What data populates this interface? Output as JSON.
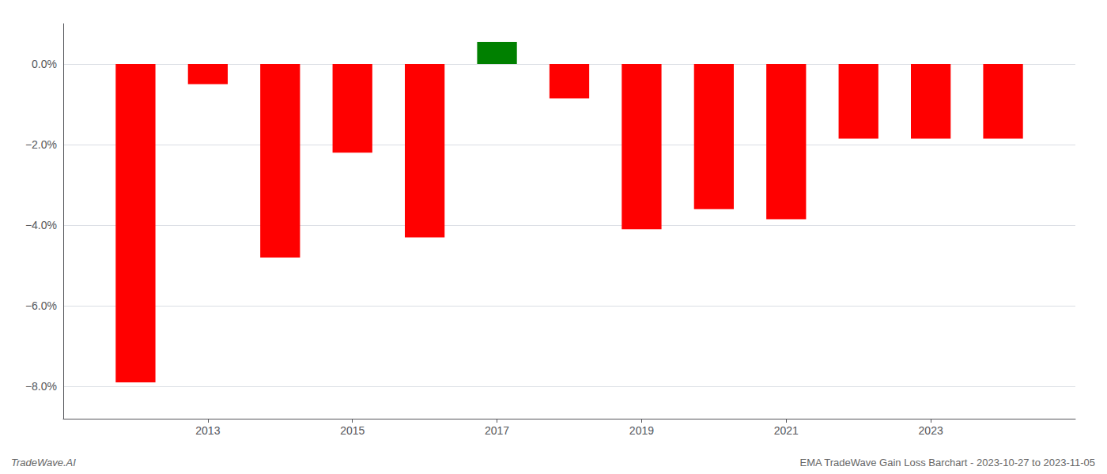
{
  "chart_data": {
    "type": "bar",
    "x": [
      2012,
      2013,
      2014,
      2015,
      2016,
      2017,
      2018,
      2019,
      2020,
      2021,
      2022,
      2023,
      2024
    ],
    "values": [
      -7.9,
      -0.5,
      -4.8,
      -2.2,
      -4.3,
      0.55,
      -0.85,
      -4.1,
      -3.6,
      -3.85,
      -1.85,
      -1.85,
      -1.85
    ],
    "colors": [
      "#ff0000",
      "#ff0000",
      "#ff0000",
      "#ff0000",
      "#ff0000",
      "#008000",
      "#ff0000",
      "#ff0000",
      "#ff0000",
      "#ff0000",
      "#ff0000",
      "#ff0000",
      "#ff0000"
    ],
    "xlim": [
      2011.0,
      2025.0
    ],
    "xticks": [
      2013,
      2015,
      2017,
      2019,
      2021,
      2023
    ],
    "ylim": [
      -8.8,
      1.0
    ],
    "yticks": [
      {
        "value": 0.0,
        "label": "0.0%"
      },
      {
        "value": -2.0,
        "label": "−2.0%"
      },
      {
        "value": -4.0,
        "label": "−4.0%"
      },
      {
        "value": -6.0,
        "label": "−6.0%"
      },
      {
        "value": -8.0,
        "label": "−8.0%"
      }
    ],
    "grid": true,
    "annotations": [
      "TradeWave.AI",
      "EMA TradeWave Gain Loss Barchart - 2023-10-27 to 2023-11-05"
    ]
  }
}
